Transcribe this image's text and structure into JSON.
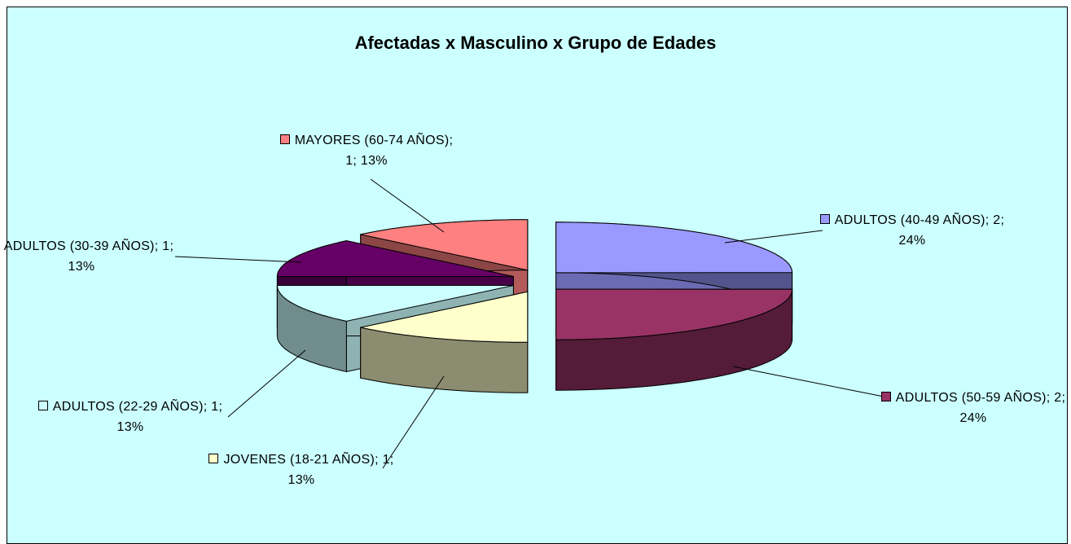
{
  "chart_data": {
    "type": "pie",
    "title": "Afectadas x Masculino x Grupo de Edades",
    "values": [
      2,
      2,
      1,
      1,
      1,
      1
    ],
    "value_labels": [
      "ADULTOS (40-49 AÑOS); 2; 24%",
      "ADULTOS (50-59 AÑOS); 2; 24%",
      "JOVENES (18-21 AÑOS); 1; 13%",
      "ADULTOS (22-29 AÑOS); 1; 13%",
      "ADULTOS (30-39 AÑOS); 1; 13%",
      "MAYORES (60-74 AÑOS); 1; 13%"
    ],
    "colors": [
      "#9999ff",
      "#993366",
      "#ffffcc",
      "#ccffff",
      "#660066",
      "#ff8080"
    ]
  }
}
